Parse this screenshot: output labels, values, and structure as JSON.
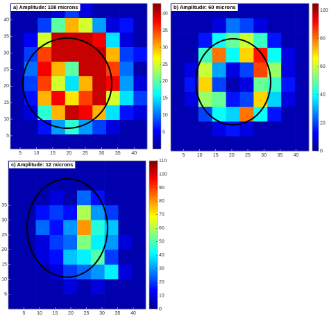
{
  "chart_data": [
    {
      "type": "heatmap",
      "title": "a) Amplitude: 108 microns",
      "colormap": "jet",
      "xlim": [
        2,
        44
      ],
      "ylim": [
        1,
        45
      ],
      "xticks": [
        5,
        10,
        15,
        20,
        25,
        30,
        35,
        40
      ],
      "yticks": [
        5,
        10,
        15,
        20,
        25,
        30,
        35,
        40
      ],
      "zlim": [
        0,
        43
      ],
      "zticks": [
        5,
        10,
        15,
        20,
        25,
        30,
        35,
        40
      ],
      "z": [
        [
          2,
          2,
          2,
          4,
          8,
          4,
          2,
          2,
          2,
          2
        ],
        [
          2,
          2,
          8,
          20,
          30,
          25,
          12,
          4,
          6,
          2
        ],
        [
          2,
          5,
          25,
          40,
          40,
          40,
          38,
          15,
          4,
          2
        ],
        [
          2,
          8,
          35,
          40,
          40,
          40,
          40,
          30,
          8,
          6
        ],
        [
          2,
          10,
          38,
          30,
          20,
          40,
          40,
          35,
          10,
          2
        ],
        [
          2,
          8,
          35,
          25,
          15,
          30,
          40,
          38,
          12,
          4
        ],
        [
          2,
          6,
          30,
          38,
          28,
          35,
          40,
          25,
          15,
          8
        ],
        [
          2,
          4,
          18,
          30,
          40,
          38,
          30,
          15,
          6,
          4
        ],
        [
          2,
          2,
          6,
          12,
          18,
          12,
          8,
          4,
          2,
          2
        ],
        [
          2,
          2,
          2,
          2,
          2,
          2,
          2,
          2,
          2,
          2
        ]
      ]
    },
    {
      "type": "heatmap",
      "title": "b) Amplitude: 60 microns",
      "colormap": "jet",
      "xlim": [
        1,
        44
      ],
      "ylim": [
        1,
        45
      ],
      "xticks": [
        5,
        10,
        15,
        20,
        25,
        30,
        35,
        40
      ],
      "zlim": [
        0,
        105
      ],
      "zticks": [
        0,
        20,
        40,
        60,
        80,
        100
      ],
      "z": [
        [
          5,
          5,
          5,
          5,
          5,
          5,
          5,
          5,
          5,
          5
        ],
        [
          5,
          5,
          5,
          10,
          25,
          20,
          10,
          5,
          5,
          5
        ],
        [
          5,
          5,
          15,
          40,
          50,
          60,
          45,
          15,
          5,
          5
        ],
        [
          5,
          5,
          45,
          80,
          40,
          70,
          90,
          40,
          10,
          5
        ],
        [
          5,
          10,
          60,
          30,
          10,
          20,
          85,
          55,
          10,
          5
        ],
        [
          5,
          15,
          70,
          20,
          5,
          10,
          50,
          45,
          15,
          5
        ],
        [
          5,
          10,
          55,
          50,
          15,
          20,
          70,
          35,
          10,
          5
        ],
        [
          5,
          5,
          20,
          40,
          35,
          80,
          40,
          15,
          5,
          5
        ],
        [
          5,
          5,
          5,
          10,
          15,
          10,
          5,
          5,
          5,
          5
        ],
        [
          5,
          5,
          5,
          5,
          5,
          5,
          5,
          5,
          5,
          5
        ]
      ]
    },
    {
      "type": "heatmap",
      "title": "c) Amplitude: 12 microns",
      "colormap": "jet",
      "xlim": [
        0,
        44
      ],
      "ylim": [
        0,
        50
      ],
      "xticks": [
        5,
        10,
        15,
        20,
        25,
        30,
        35,
        40
      ],
      "yticks": [
        5,
        10,
        15,
        20,
        25,
        30,
        35
      ],
      "zlim": [
        0,
        110
      ],
      "zticks": [
        0,
        10,
        20,
        30,
        40,
        50,
        60,
        70,
        80,
        90,
        100,
        110
      ],
      "z": [
        [
          5,
          5,
          5,
          5,
          5,
          5,
          5,
          5,
          5,
          5
        ],
        [
          5,
          5,
          5,
          5,
          5,
          5,
          5,
          5,
          5,
          5
        ],
        [
          5,
          5,
          5,
          10,
          5,
          25,
          15,
          5,
          5,
          5
        ],
        [
          5,
          5,
          15,
          20,
          15,
          60,
          30,
          20,
          5,
          5
        ],
        [
          5,
          5,
          25,
          15,
          30,
          80,
          45,
          35,
          5,
          5
        ],
        [
          5,
          5,
          10,
          20,
          25,
          55,
          40,
          30,
          10,
          5
        ],
        [
          5,
          5,
          10,
          15,
          35,
          40,
          50,
          20,
          5,
          5
        ],
        [
          5,
          5,
          5,
          10,
          20,
          25,
          30,
          40,
          10,
          5
        ],
        [
          5,
          5,
          5,
          5,
          10,
          5,
          10,
          5,
          5,
          5
        ],
        [
          5,
          5,
          5,
          5,
          5,
          5,
          5,
          5,
          5,
          5
        ]
      ]
    }
  ]
}
